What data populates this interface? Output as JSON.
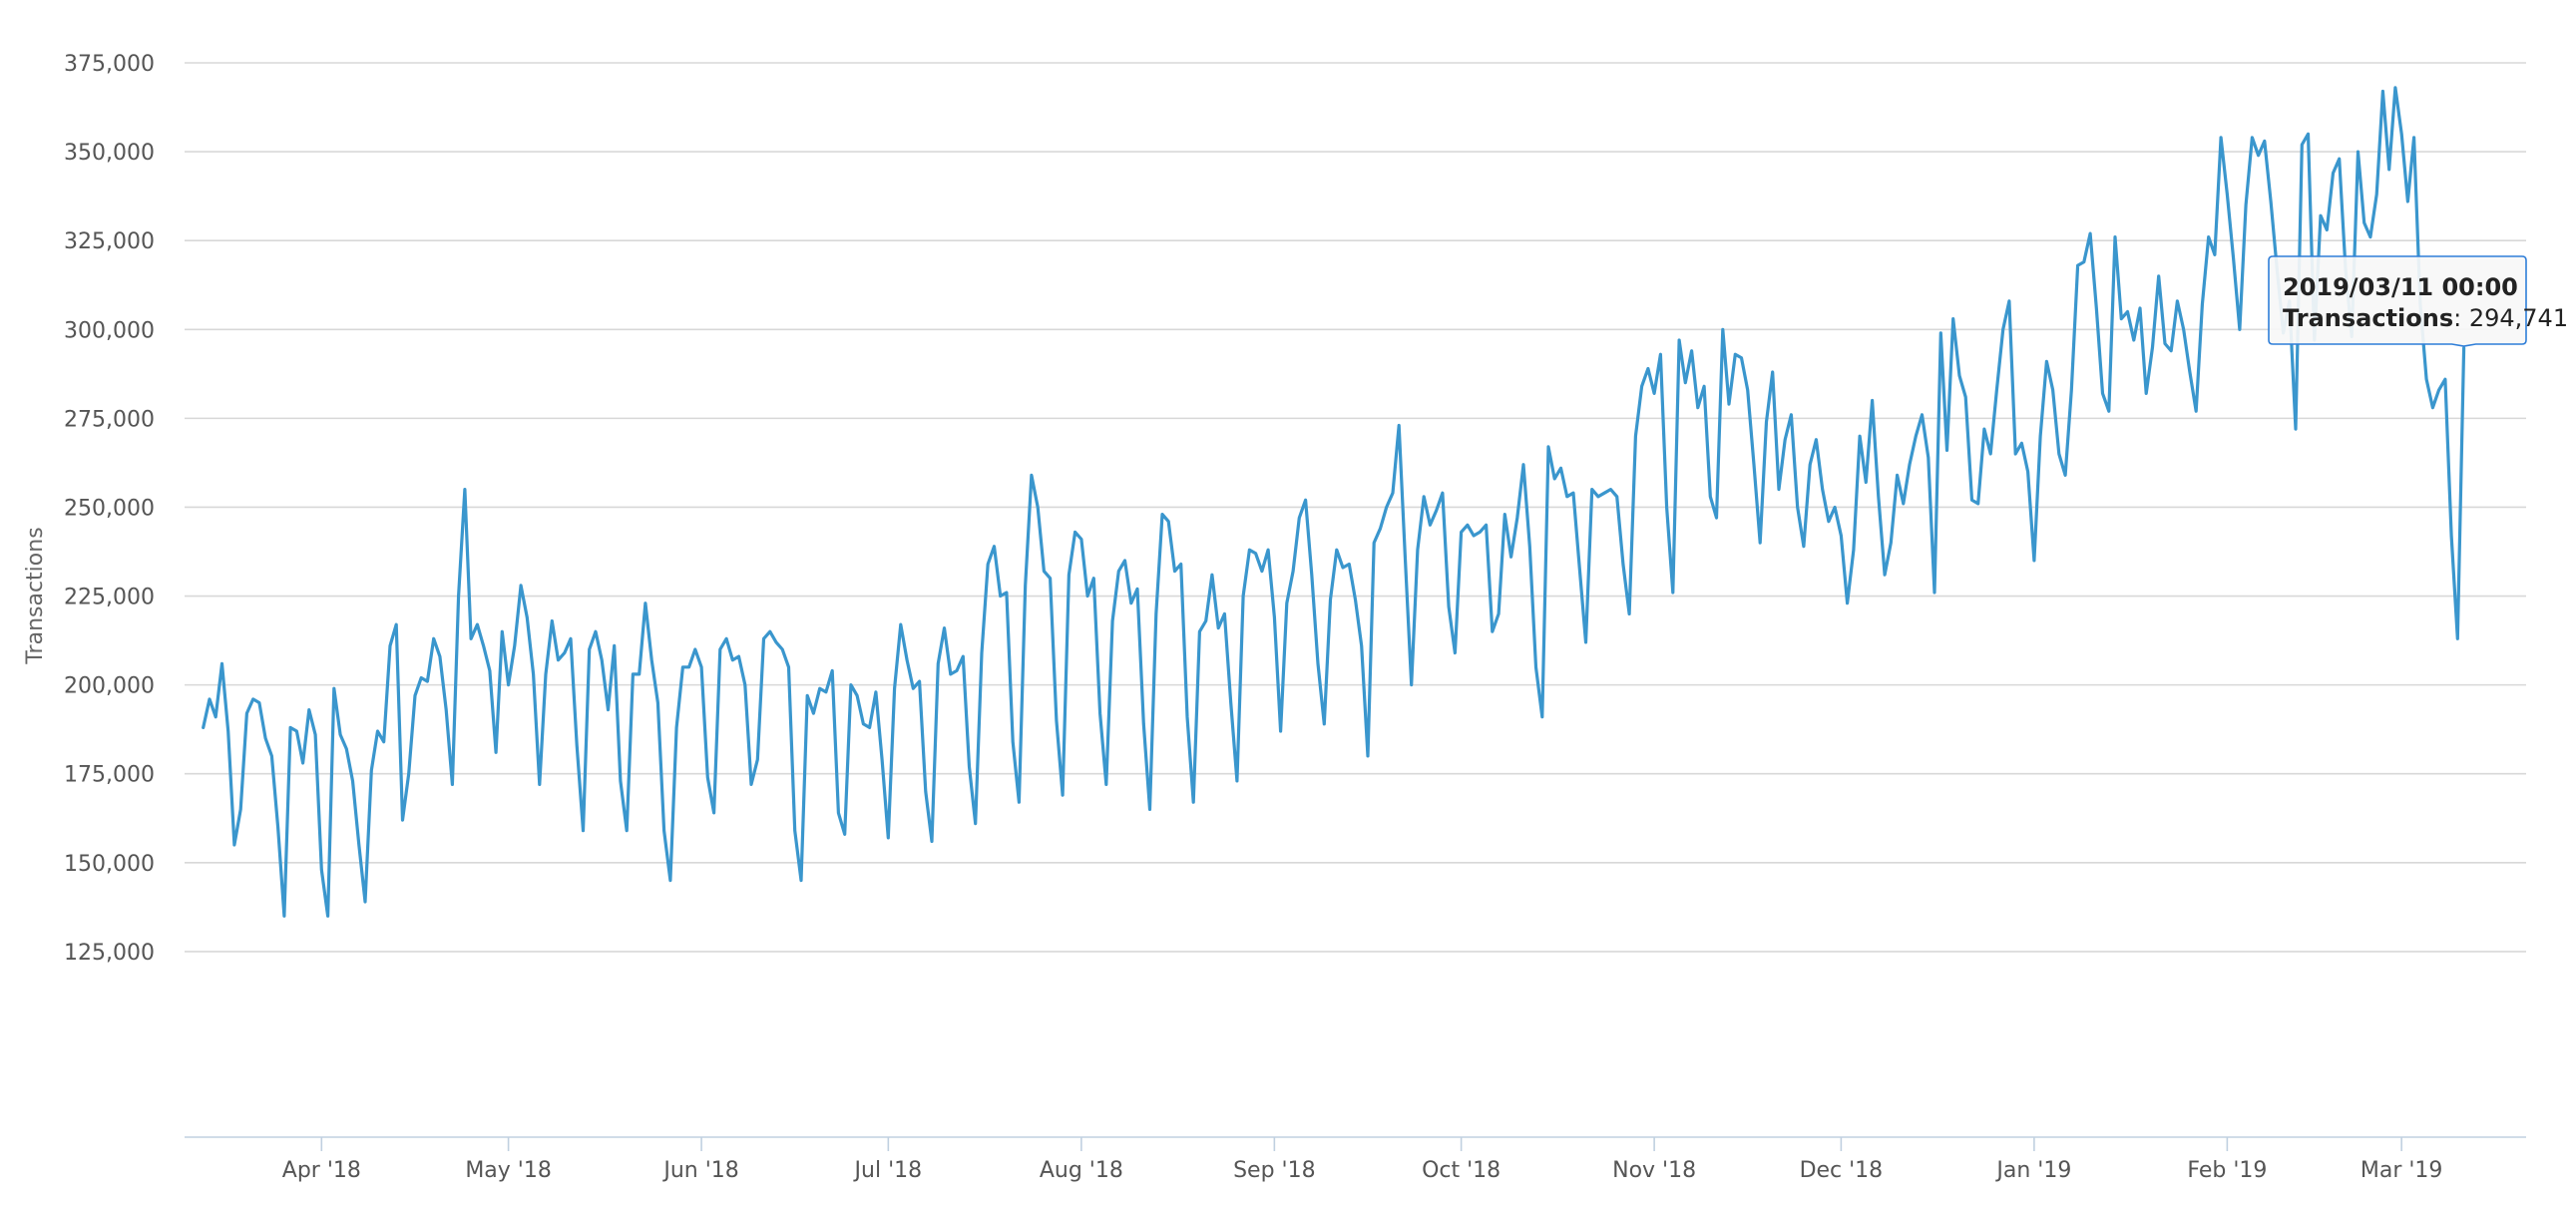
{
  "chart_data": {
    "type": "line",
    "title": "",
    "xlabel": "",
    "ylabel": "Transactions",
    "ylim": [
      100000,
      375000
    ],
    "y_ticks": [
      125000,
      150000,
      175000,
      200000,
      225000,
      250000,
      275000,
      300000,
      325000,
      350000,
      375000
    ],
    "y_tick_labels": [
      "125,000",
      "150,000",
      "175,000",
      "200,000",
      "225,000",
      "250,000",
      "275,000",
      "300,000",
      "325,000",
      "350,000",
      "375,000"
    ],
    "xlim": [
      "2018-03-10",
      "2019-03-21"
    ],
    "x_ticks": [
      "2018-04-01",
      "2018-05-01",
      "2018-06-01",
      "2018-07-01",
      "2018-08-01",
      "2018-09-01",
      "2018-10-01",
      "2018-11-01",
      "2018-12-01",
      "2019-01-01",
      "2019-02-01",
      "2019-03-01"
    ],
    "x_tick_labels": [
      "Apr '18",
      "May '18",
      "Jun '18",
      "Jul '18",
      "Aug '18",
      "Sep '18",
      "Oct '18",
      "Nov '18",
      "Dec '18",
      "Jan '19",
      "Feb '19",
      "Mar '19"
    ],
    "grid": true,
    "legend": "none",
    "color": "#3a96cd",
    "series": [
      {
        "start_date": "2018-03-13",
        "step": "1 day",
        "values": [
          188000,
          196000,
          191000,
          206000,
          187000,
          155000,
          165000,
          192000,
          196000,
          195000,
          185000,
          180000,
          160000,
          135000,
          188000,
          187000,
          178000,
          193000,
          186000,
          148000,
          135000,
          199000,
          186000,
          182000,
          173000,
          155000,
          139000,
          176000,
          187000,
          184000,
          211000,
          217000,
          162000,
          175000,
          197000,
          202000,
          201000,
          213000,
          208000,
          193000,
          172000,
          225000,
          255000,
          213000,
          217000,
          211000,
          204000,
          181000,
          215000,
          200000,
          211000,
          228000,
          219000,
          203000,
          172000,
          203000,
          218000,
          207000,
          209000,
          213000,
          183000,
          159000,
          210000,
          215000,
          207000,
          193000,
          211000,
          173000,
          159000,
          203000,
          203000,
          223000,
          207000,
          195000,
          159000,
          145000,
          188000,
          205000,
          205000,
          210000,
          205000,
          174000,
          164000,
          210000,
          213000,
          207000,
          208000,
          200000,
          172000,
          179000,
          213000,
          215000,
          212000,
          210000,
          205000,
          159000,
          145000,
          197000,
          192000,
          199000,
          198000,
          204000,
          164000,
          158000,
          200000,
          197000,
          189000,
          188000,
          198000,
          179000,
          157000,
          199000,
          217000,
          207000,
          199000,
          201000,
          170000,
          156000,
          206000,
          216000,
          203000,
          204000,
          208000,
          177000,
          161000,
          209000,
          234000,
          239000,
          225000,
          226000,
          184000,
          167000,
          228000,
          259000,
          250000,
          232000,
          230000,
          190000,
          169000,
          231000,
          243000,
          241000,
          225000,
          230000,
          192000,
          172000,
          218000,
          232000,
          235000,
          223000,
          227000,
          189000,
          165000,
          220000,
          248000,
          246000,
          232000,
          234000,
          191000,
          167000,
          215000,
          218000,
          231000,
          216000,
          220000,
          195000,
          173000,
          225000,
          238000,
          237000,
          232000,
          238000,
          219000,
          187000,
          223000,
          232000,
          247000,
          252000,
          231000,
          206000,
          189000,
          224000,
          238000,
          233000,
          234000,
          224000,
          211000,
          180000,
          240000,
          244000,
          250000,
          254000,
          273000,
          236000,
          200000,
          238000,
          253000,
          245000,
          249000,
          254000,
          222000,
          209000,
          243000,
          245000,
          242000,
          243000,
          245000,
          215000,
          220000,
          248000,
          236000,
          247000,
          262000,
          239000,
          205000,
          191000,
          267000,
          258000,
          261000,
          253000,
          254000,
          233000,
          212000,
          255000,
          253000,
          254000,
          255000,
          253000,
          234000,
          220000,
          270000,
          284000,
          289000,
          282000,
          293000,
          250000,
          226000,
          297000,
          285000,
          294000,
          278000,
          284000,
          253000,
          247000,
          300000,
          279000,
          293000,
          292000,
          283000,
          262000,
          240000,
          274000,
          288000,
          255000,
          269000,
          276000,
          250000,
          239000,
          262000,
          269000,
          255000,
          246000,
          250000,
          242000,
          223000,
          238000,
          270000,
          257000,
          280000,
          253000,
          231000,
          240000,
          259000,
          251000,
          262000,
          270000,
          276000,
          264000,
          226000,
          299000,
          266000,
          303000,
          287000,
          281000,
          252000,
          251000,
          272000,
          265000,
          283000,
          300000,
          308000,
          265000,
          268000,
          260000,
          235000,
          270000,
          291000,
          283000,
          265000,
          259000,
          283000,
          318000,
          319000,
          327000,
          306000,
          282000,
          277000,
          326000,
          303000,
          305000,
          297000,
          306000,
          282000,
          295000,
          315000,
          296000,
          294000,
          308000,
          300000,
          288000,
          277000,
          307000,
          326000,
          321000,
          354000,
          338000,
          320000,
          300000,
          335000,
          354000,
          349000,
          353000,
          336000,
          317000,
          299000,
          308000,
          272000,
          352000,
          355000,
          297000,
          332000,
          328000,
          344000,
          348000,
          317000,
          298000,
          350000,
          330000,
          326000,
          338000,
          367000,
          345000,
          368000,
          355000,
          336000,
          354000,
          307000,
          286000,
          278000,
          283000,
          286000,
          242000,
          213000,
          294741
        ]
      }
    ],
    "tooltip": {
      "date_text": "2019/03/11 00:00",
      "label": "Transactions",
      "value_text": "294,741"
    }
  }
}
